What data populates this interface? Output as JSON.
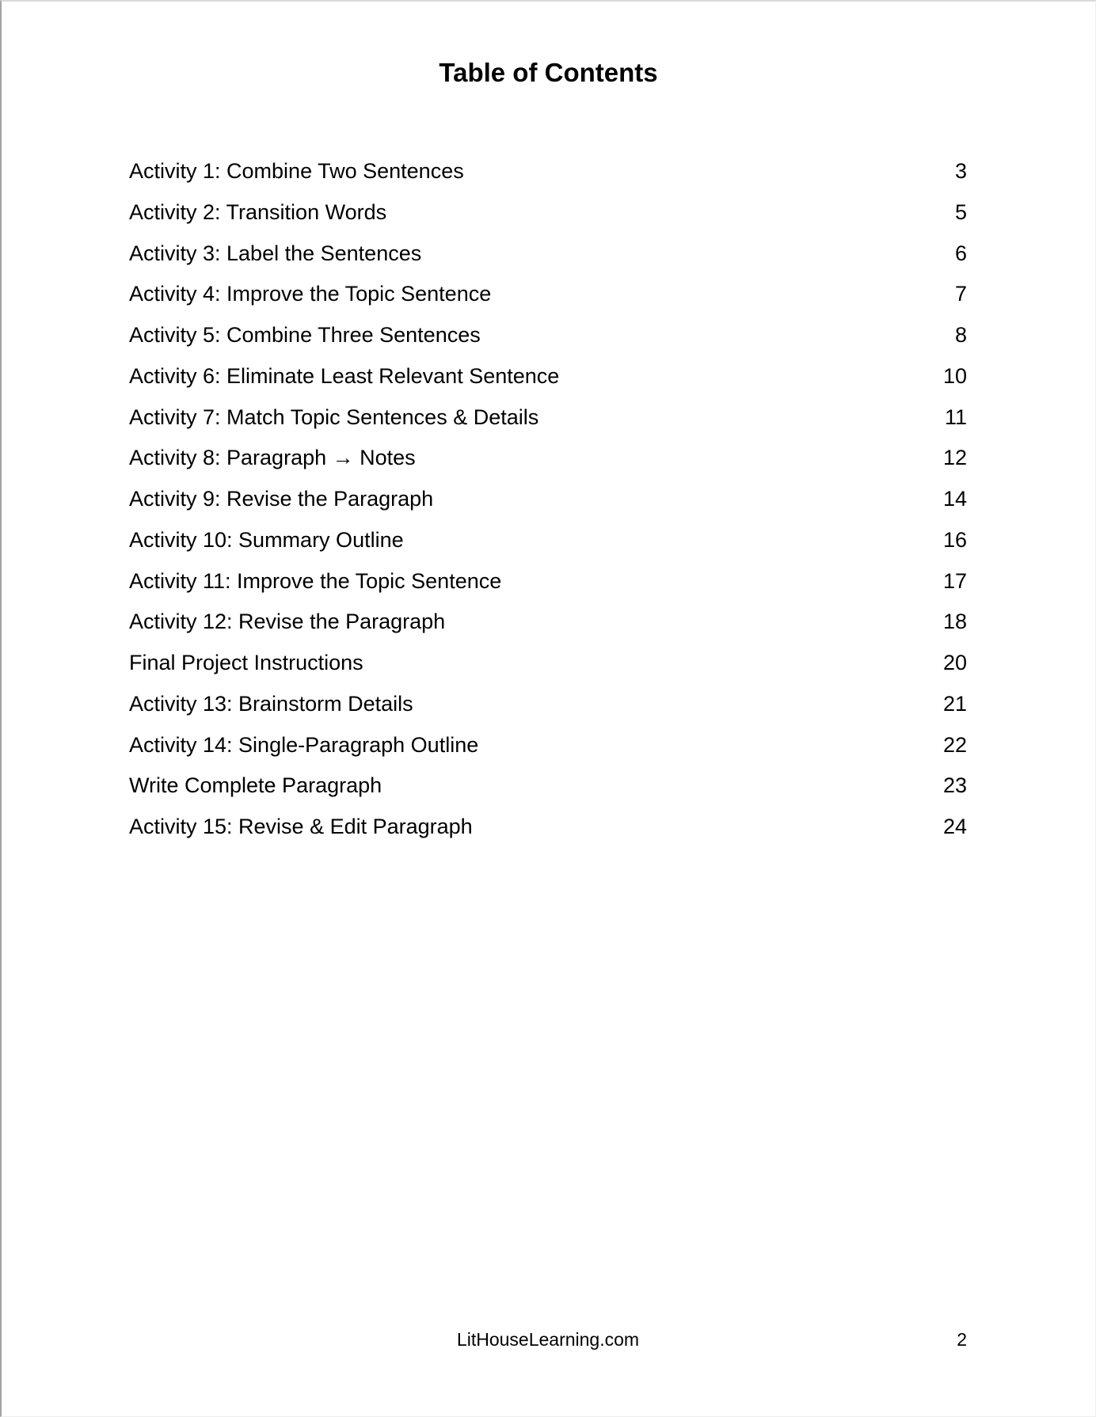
{
  "title": "Table of Contents",
  "toc": {
    "entries": [
      {
        "label": "Activity 1: Combine Two Sentences",
        "page": "3"
      },
      {
        "label": "Activity 2: Transition Words",
        "page": "5"
      },
      {
        "label": "Activity 3: Label the Sentences",
        "page": "6"
      },
      {
        "label": "Activity 4: Improve the Topic Sentence",
        "page": "7"
      },
      {
        "label": "Activity 5: Combine Three Sentences",
        "page": "8"
      },
      {
        "label": "Activity 6: Eliminate Least Relevant Sentence",
        "page": "10"
      },
      {
        "label": "Activity 7: Match Topic Sentences & Details",
        "page": "11"
      },
      {
        "label": "Activity 8: Paragraph → Notes",
        "page": "12"
      },
      {
        "label": "Activity 9: Revise the Paragraph",
        "page": "14"
      },
      {
        "label": "Activity 10: Summary Outline",
        "page": "16"
      },
      {
        "label": "Activity 11: Improve the Topic Sentence",
        "page": "17"
      },
      {
        "label": "Activity 12: Revise the Paragraph",
        "page": "18"
      },
      {
        "label": "Final Project Instructions",
        "page": "20"
      },
      {
        "label": "Activity 13: Brainstorm Details",
        "page": "21"
      },
      {
        "label": "Activity 14: Single-Paragraph Outline",
        "page": "22"
      },
      {
        "label": "Write Complete Paragraph",
        "page": "23"
      },
      {
        "label": "Activity 15: Revise & Edit Paragraph",
        "page": "24"
      }
    ]
  },
  "footer": {
    "site": "LitHouseLearning.com",
    "page_number": "2"
  },
  "colors": {
    "text": "#000000",
    "page_background": "#ffffff",
    "edge_left": "#a3a3a3",
    "edge_top": "#d9d9d9"
  }
}
